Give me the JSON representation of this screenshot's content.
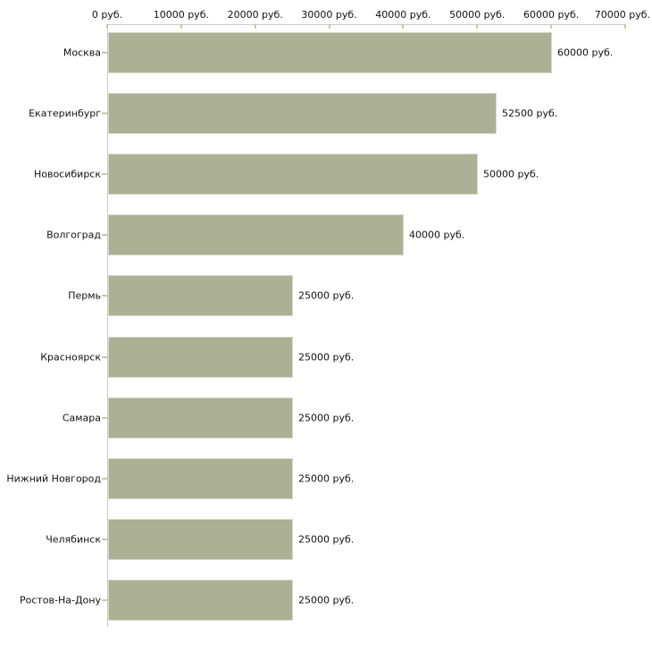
{
  "page": {
    "background": "#ffffff"
  },
  "chart_data": {
    "type": "bar",
    "orientation": "horizontal",
    "categories": [
      "Москва",
      "Екатеринбург",
      "Новосибирск",
      "Волгоград",
      "Пермь",
      "Красноярск",
      "Самара",
      "Нижний Новгород",
      "Челябинск",
      "Ростов-На-Дону"
    ],
    "values": [
      60000,
      52500,
      50000,
      40000,
      25000,
      25000,
      25000,
      25000,
      25000,
      25000
    ],
    "value_labels": [
      "60000 руб.",
      "52500 руб.",
      "50000 руб.",
      "40000 руб.",
      "25000 руб.",
      "25000 руб.",
      "25000 руб.",
      "25000 руб.",
      "25000 руб.",
      "25000 руб."
    ],
    "x_axis": {
      "min": 0,
      "max": 70000,
      "unit": "руб.",
      "ticks": [
        0,
        10000,
        20000,
        30000,
        40000,
        50000,
        60000,
        70000
      ],
      "tick_labels": [
        "0 руб.",
        "10000 руб.",
        "20000 руб.",
        "30000 руб.",
        "40000 руб.",
        "50000 руб.",
        "60000 руб.",
        "70000 руб."
      ]
    },
    "grid": false,
    "legend": false,
    "colors": {
      "bar_fill": "#acb195",
      "bar_border": "#d6d9c9",
      "axis_line": "#cbcbcb",
      "tick_mark": "#c6c9a2",
      "text": "#111111",
      "background": "#ffffff"
    }
  }
}
